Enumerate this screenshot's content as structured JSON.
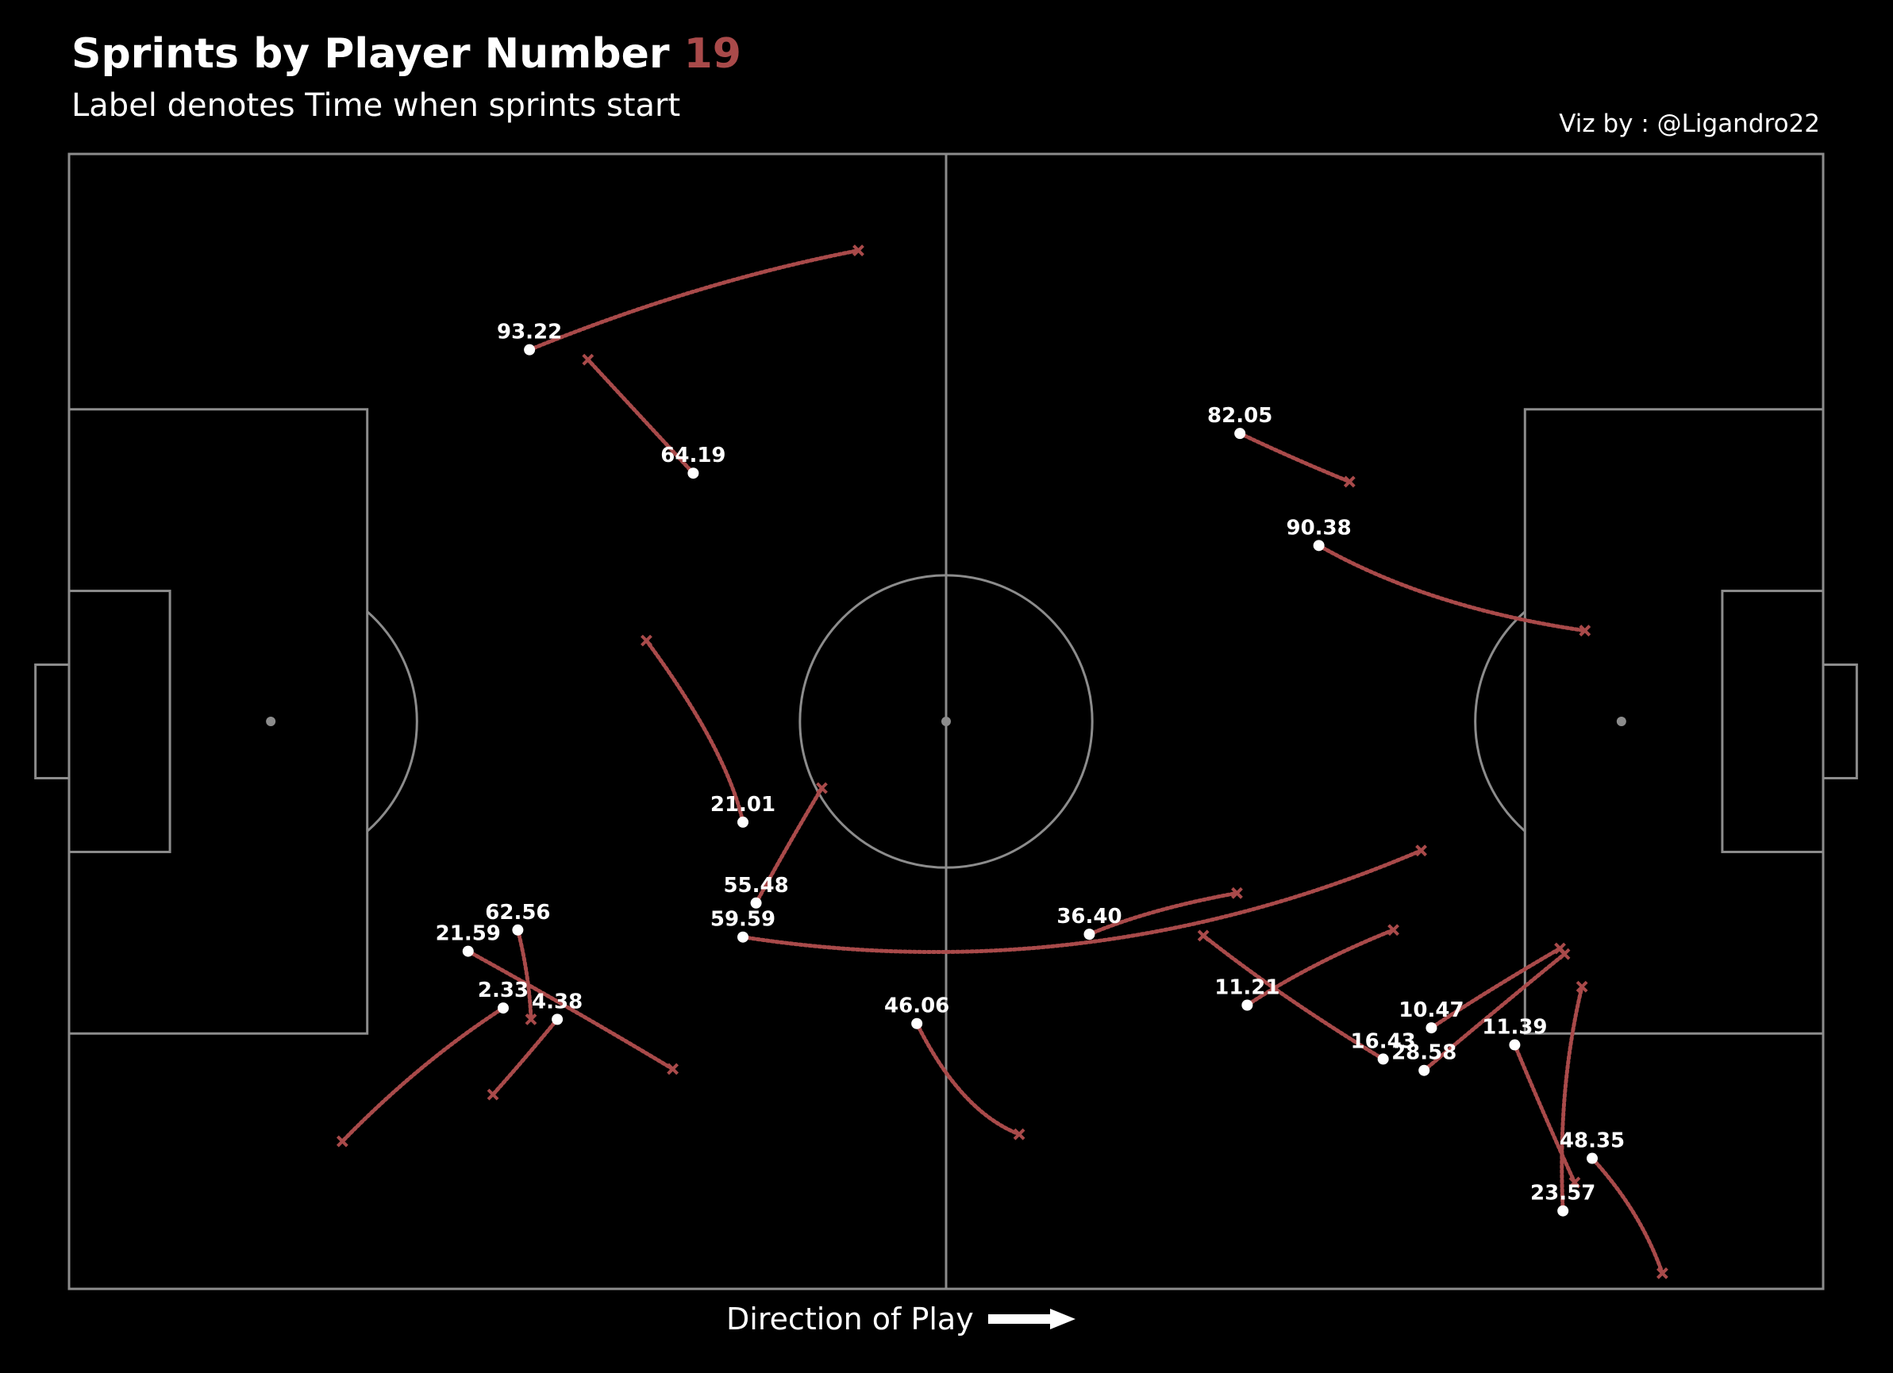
{
  "header": {
    "title": "Sprints by Player Number",
    "player_number": "19",
    "subtitle": "Label denotes Time when sprints start",
    "credit": "Viz by : @Ligandro22"
  },
  "footer": {
    "direction_label": "Direction of Play",
    "arrow_icon": "right-arrow-icon"
  },
  "colors": {
    "background": "#000000",
    "pitch_lines": "#8c8c8c",
    "sprint_path": "#a94a4a",
    "start_marker": "#ffffff",
    "accent": "#a94a4a"
  },
  "chart_data": {
    "type": "scatter",
    "title": "Sprints by Player Number 19",
    "subtitle": "Label denotes Time when sprints start",
    "pitch": {
      "length": 120,
      "width": 80
    },
    "xlim": [
      0,
      120
    ],
    "ylim": [
      0,
      80
    ],
    "grid": false,
    "series": [
      {
        "label": "93.22",
        "start": [
          31.5,
          66.2
        ],
        "end": [
          54.0,
          73.2
        ],
        "ctrl": [
          43,
          71
        ]
      },
      {
        "label": "64.19",
        "start": [
          42.7,
          57.5
        ],
        "end": [
          35.5,
          65.5
        ],
        "ctrl": [
          39,
          61.6
        ]
      },
      {
        "label": "82.05",
        "start": [
          80.1,
          60.3
        ],
        "end": [
          87.6,
          56.9
        ],
        "ctrl": [
          84,
          58.4
        ]
      },
      {
        "label": "90.38",
        "start": [
          85.5,
          52.4
        ],
        "end": [
          103.7,
          46.4
        ],
        "ctrl": [
          93,
          48
        ]
      },
      {
        "label": "21.01",
        "start": [
          46.1,
          32.9
        ],
        "end": [
          39.5,
          45.7
        ],
        "ctrl": [
          45,
          38
        ]
      },
      {
        "label": "55.48",
        "start": [
          47.0,
          27.2
        ],
        "end": [
          51.5,
          35.3
        ],
        "ctrl": [
          49,
          31
        ]
      },
      {
        "label": "59.59",
        "start": [
          46.1,
          24.8
        ],
        "end": [
          92.5,
          30.9
        ],
        "ctrl": [
          70,
          21
        ]
      },
      {
        "label": "36.40",
        "start": [
          69.8,
          25.0
        ],
        "end": [
          79.9,
          27.9
        ],
        "ctrl": [
          74,
          26.8
        ]
      },
      {
        "label": "62.56",
        "start": [
          30.7,
          25.3
        ],
        "end": [
          31.6,
          19.0
        ],
        "ctrl": [
          31.5,
          22
        ]
      },
      {
        "label": "21.59",
        "start": [
          27.3,
          23.8
        ],
        "end": [
          41.3,
          15.5
        ],
        "ctrl": [
          34,
          20
        ]
      },
      {
        "label": "2.33",
        "start": [
          29.7,
          19.8
        ],
        "end": [
          18.7,
          10.4
        ],
        "ctrl": [
          24,
          16
        ]
      },
      {
        "label": "4.38",
        "start": [
          33.4,
          19.0
        ],
        "end": [
          29.0,
          13.7
        ],
        "ctrl": [
          31,
          16
        ]
      },
      {
        "label": "46.06",
        "start": [
          58.0,
          18.7
        ],
        "end": [
          65.0,
          10.9
        ],
        "ctrl": [
          61,
          12.5
        ]
      },
      {
        "label": "11.21",
        "start": [
          80.6,
          20.0
        ],
        "end": [
          90.6,
          25.3
        ],
        "ctrl": [
          85,
          23
        ]
      },
      {
        "label": "16.43",
        "start": [
          89.9,
          16.2
        ],
        "end": [
          77.6,
          24.9
        ],
        "ctrl": [
          83,
          20.5
        ]
      },
      {
        "label": "28.58",
        "start": [
          92.7,
          15.4
        ],
        "end": [
          102.3,
          23.6
        ],
        "ctrl": [
          98,
          20
        ]
      },
      {
        "label": "10.47",
        "start": [
          93.2,
          18.4
        ],
        "end": [
          102.0,
          24.0
        ],
        "ctrl": [
          97,
          21
        ]
      },
      {
        "label": "11.39",
        "start": [
          98.9,
          17.2
        ],
        "end": [
          103.0,
          7.5
        ],
        "ctrl": [
          101,
          12
        ]
      },
      {
        "label": "48.35",
        "start": [
          104.2,
          9.2
        ],
        "end": [
          109.0,
          1.1
        ],
        "ctrl": [
          107.5,
          5.5
        ]
      },
      {
        "label": "23.57",
        "start": [
          102.2,
          5.5
        ],
        "end": [
          103.5,
          21.3
        ],
        "ctrl": [
          101.8,
          14
        ]
      }
    ]
  }
}
